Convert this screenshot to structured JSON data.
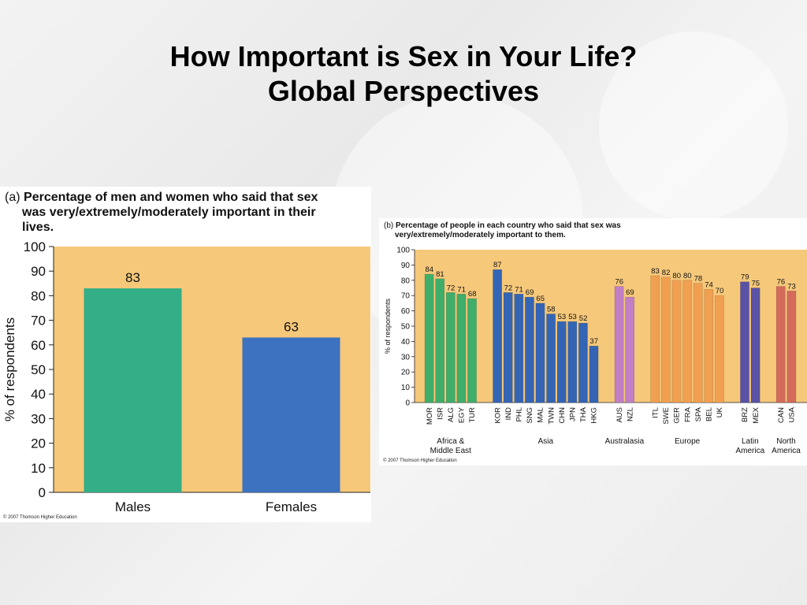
{
  "slide": {
    "title_line1": "How Important is Sex in Your Life?",
    "title_line2": "Global Perspectives"
  },
  "chart_data": [
    {
      "type": "bar",
      "panel_tag": "(a)",
      "title_line1": "Percentage of men and women who said that sex",
      "title_line2": "was very/extremely/moderately important in their",
      "title_line3": "lives.",
      "ylabel": "% of respondents",
      "xlabel": "",
      "ylim": [
        0,
        100
      ],
      "yticks": [
        0,
        10,
        20,
        30,
        40,
        50,
        60,
        70,
        80,
        90,
        100
      ],
      "categories": [
        "Males",
        "Females"
      ],
      "values": [
        83,
        63
      ],
      "colors": [
        "#33ae86",
        "#3c72bf"
      ],
      "background": "#f6c87a",
      "credit": "© 2007 Thomson Higher Education"
    },
    {
      "type": "bar",
      "panel_tag": "(b)",
      "title_line1": "Percentage of people in each country who said that sex was",
      "title_line2": "very/extremely/moderately important to them.",
      "ylabel": "% of respondents",
      "xlabel": "",
      "ylim": [
        0,
        100
      ],
      "yticks": [
        0,
        10,
        20,
        30,
        40,
        50,
        60,
        70,
        80,
        90,
        100
      ],
      "background": "#f6c87a",
      "groups": [
        {
          "line1": "Africa &",
          "line2": "Middle East",
          "color": "#3fae6a",
          "categories": [
            "MOR",
            "ISR",
            "ALG",
            "EGY",
            "TUR"
          ],
          "values": [
            84,
            81,
            72,
            71,
            68
          ]
        },
        {
          "line1": "Asia",
          "line2": "",
          "color": "#3465b5",
          "categories": [
            "KOR",
            "IND",
            "PHL",
            "SNG",
            "MAL",
            "TWN",
            "CHN",
            "JPN",
            "THA",
            "HKG"
          ],
          "values": [
            87,
            72,
            71,
            69,
            65,
            58,
            53,
            53,
            52,
            37
          ]
        },
        {
          "line1": "Australasia",
          "line2": "",
          "color": "#c27fc3",
          "categories": [
            "AUS",
            "NZL"
          ],
          "values": [
            76,
            69
          ]
        },
        {
          "line1": "Europe",
          "line2": "",
          "color": "#f0a050",
          "categories": [
            "ITL",
            "SWE",
            "GER",
            "FRA",
            "SPA",
            "BEL",
            "UK"
          ],
          "values": [
            83,
            82,
            80,
            80,
            78,
            74,
            70
          ]
        },
        {
          "line1": "Latin",
          "line2": "America",
          "color": "#5a52a6",
          "categories": [
            "BRZ",
            "MEX"
          ],
          "values": [
            79,
            75
          ]
        },
        {
          "line1": "North",
          "line2": "America",
          "color": "#d46a5c",
          "categories": [
            "CAN",
            "USA"
          ],
          "values": [
            76,
            73
          ]
        }
      ],
      "credit": "© 2007 Thomson Higher Education"
    }
  ]
}
